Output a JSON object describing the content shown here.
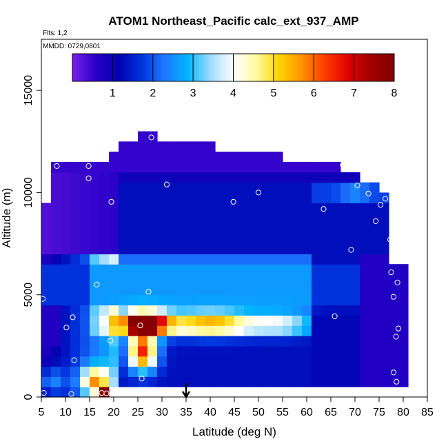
{
  "chart_data": {
    "type": "heatmap",
    "title": "ATOM1 Northeast_Pacific calc_ext_937_AMP",
    "annotations": {
      "flights": "Flts: 1,2",
      "dates": "MMDD: 0729,0801"
    },
    "xlabel": "Latitude (deg N)",
    "ylabel": "Altitude (m)",
    "xlim": [
      5,
      85
    ],
    "ylim": [
      0,
      17500
    ],
    "x_ticks": [
      "5",
      "10",
      "15",
      "20",
      "25",
      "30",
      "35",
      "40",
      "45",
      "50",
      "55",
      "60",
      "65",
      "70",
      "75",
      "80",
      "85"
    ],
    "y_ticks": [
      "0",
      "5000",
      "10000",
      "15000"
    ],
    "colorbar": {
      "range": [
        0,
        8
      ],
      "ticks": [
        "1",
        "2",
        "3",
        "4",
        "5",
        "6",
        "7",
        "8"
      ],
      "placement": "top inside plot",
      "colors": [
        "#7b1fe8",
        "#2a00c8",
        "#0000b0",
        "#0033dd",
        "#1e78ff",
        "#00b4ff",
        "#9fdcff",
        "#ffffff",
        "#fffba0",
        "#ffd400",
        "#ff9000",
        "#ff3a00",
        "#e00000",
        "#a00000",
        "#800000"
      ]
    },
    "arrow_marker_latitude": 35,
    "grid": false,
    "lat_bins": [
      5,
      7,
      9,
      11,
      13,
      15,
      17,
      19,
      21,
      23,
      25,
      27,
      29,
      31,
      33,
      35,
      37,
      39,
      41,
      43,
      45,
      47,
      49,
      51,
      53,
      55,
      57,
      59,
      61,
      63,
      65,
      67,
      69,
      71,
      73,
      75,
      77,
      79
    ],
    "alt_bins": [
      0,
      500,
      1000,
      1500,
      2000,
      2500,
      3000,
      3500,
      4000,
      4500,
      5000,
      5500,
      6000,
      6500,
      7000,
      7500,
      8000,
      8500,
      9000,
      9500,
      10000,
      10500,
      11000,
      11500,
      12000,
      12500,
      13000
    ],
    "sample_points": [
      {
        "lat": 5.5,
        "alt": 200
      },
      {
        "lat": 11.2,
        "alt": 150
      },
      {
        "lat": 17.5,
        "alt": 200
      },
      {
        "lat": 18.5,
        "alt": 180
      },
      {
        "lat": 25.8,
        "alt": 900
      },
      {
        "lat": 11.8,
        "alt": 1800
      },
      {
        "lat": 19.3,
        "alt": 2750
      },
      {
        "lat": 10.2,
        "alt": 3400
      },
      {
        "lat": 11.5,
        "alt": 3900
      },
      {
        "lat": 25.5,
        "alt": 3500
      },
      {
        "lat": 5.3,
        "alt": 4800
      },
      {
        "lat": 27.2,
        "alt": 5150
      },
      {
        "lat": 16.5,
        "alt": 5500
      },
      {
        "lat": 8.2,
        "alt": 11300
      },
      {
        "lat": 14.8,
        "alt": 11300
      },
      {
        "lat": 14.8,
        "alt": 10700
      },
      {
        "lat": 19.5,
        "alt": 9550
      },
      {
        "lat": 31.0,
        "alt": 10400
      },
      {
        "lat": 27.8,
        "alt": 12700
      },
      {
        "lat": 44.8,
        "alt": 9550
      },
      {
        "lat": 50.0,
        "alt": 10000
      },
      {
        "lat": 63.5,
        "alt": 9200
      },
      {
        "lat": 67.5,
        "alt": 11350
      },
      {
        "lat": 70.5,
        "alt": 10350
      },
      {
        "lat": 72.8,
        "alt": 9950
      },
      {
        "lat": 74.3,
        "alt": 8600
      },
      {
        "lat": 75.3,
        "alt": 9400
      },
      {
        "lat": 76.3,
        "alt": 9700
      },
      {
        "lat": 77.3,
        "alt": 7700
      },
      {
        "lat": 69.2,
        "alt": 7200
      },
      {
        "lat": 77.5,
        "alt": 6100
      },
      {
        "lat": 78.8,
        "alt": 5600
      },
      {
        "lat": 78.0,
        "alt": 4900
      },
      {
        "lat": 65.8,
        "alt": 3950
      },
      {
        "lat": 79.0,
        "alt": 3350
      },
      {
        "lat": 78.5,
        "alt": 2950
      },
      {
        "lat": 78.0,
        "alt": 1200
      },
      {
        "lat": 78.6,
        "alt": 750
      }
    ]
  }
}
